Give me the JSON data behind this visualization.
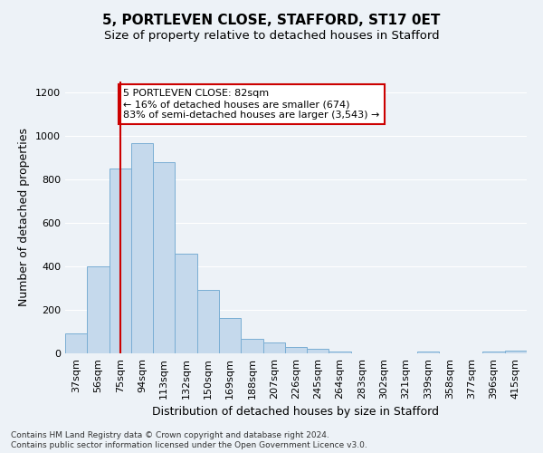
{
  "title1": "5, PORTLEVEN CLOSE, STAFFORD, ST17 0ET",
  "title2": "Size of property relative to detached houses in Stafford",
  "xlabel": "Distribution of detached houses by size in Stafford",
  "ylabel": "Number of detached properties",
  "categories": [
    "37sqm",
    "56sqm",
    "75sqm",
    "94sqm",
    "113sqm",
    "132sqm",
    "150sqm",
    "169sqm",
    "188sqm",
    "207sqm",
    "226sqm",
    "245sqm",
    "264sqm",
    "283sqm",
    "302sqm",
    "321sqm",
    "339sqm",
    "358sqm",
    "377sqm",
    "396sqm",
    "415sqm"
  ],
  "values": [
    90,
    400,
    850,
    965,
    880,
    460,
    293,
    163,
    68,
    50,
    30,
    22,
    10,
    0,
    0,
    0,
    10,
    0,
    0,
    10,
    13
  ],
  "bar_color": "#c5d9ec",
  "bar_edge_color": "#7aaed4",
  "red_line_index": 2,
  "annotation_text": "5 PORTLEVEN CLOSE: 82sqm\n← 16% of detached houses are smaller (674)\n83% of semi-detached houses are larger (3,543) →",
  "annotation_box_color": "#ffffff",
  "annotation_box_edge_color": "#cc0000",
  "red_line_color": "#cc0000",
  "footnote1": "Contains HM Land Registry data © Crown copyright and database right 2024.",
  "footnote2": "Contains public sector information licensed under the Open Government Licence v3.0.",
  "ylim": [
    0,
    1250
  ],
  "yticks": [
    0,
    200,
    400,
    600,
    800,
    1000,
    1200
  ],
  "bg_color": "#edf2f7",
  "grid_color": "#ffffff",
  "title1_fontsize": 11,
  "title2_fontsize": 9.5,
  "ylabel_fontsize": 9,
  "xlabel_fontsize": 9,
  "tick_fontsize": 8,
  "annot_fontsize": 8,
  "footnote_fontsize": 6.5
}
